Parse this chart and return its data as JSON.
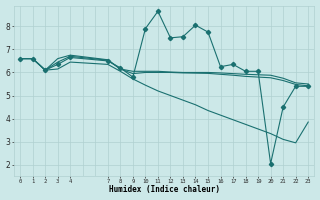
{
  "xlabel": "Humidex (Indice chaleur)",
  "bg_color": "#cce8e8",
  "grid_major_color": "#b0d0d0",
  "grid_minor_color": "#c8e4e4",
  "line_color": "#1a7070",
  "xlim": [
    -0.5,
    23.5
  ],
  "ylim": [
    1.5,
    8.9
  ],
  "yticks": [
    2,
    3,
    4,
    5,
    6,
    7,
    8
  ],
  "xticks": [
    0,
    1,
    2,
    3,
    4,
    7,
    8,
    9,
    10,
    11,
    12,
    13,
    14,
    15,
    16,
    17,
    18,
    19,
    20,
    21,
    22,
    23
  ],
  "xtick_labels": [
    "0",
    "1",
    "2",
    "3",
    "4",
    "7",
    "8",
    "9",
    "10",
    "11",
    "12",
    "13",
    "14",
    "15",
    "16",
    "17",
    "18",
    "19",
    "20",
    "21",
    "22",
    "23"
  ],
  "line1_x": [
    0,
    1,
    2,
    3,
    4,
    7,
    8,
    9,
    10,
    11,
    12,
    13,
    14,
    15,
    16,
    17,
    18,
    19,
    20,
    21,
    22,
    23
  ],
  "line1_y": [
    6.6,
    6.6,
    6.1,
    6.35,
    6.65,
    6.5,
    6.2,
    5.8,
    7.9,
    8.65,
    7.5,
    7.55,
    8.05,
    7.75,
    6.25,
    6.35,
    6.05,
    6.05,
    2.05,
    4.5,
    5.4,
    5.4
  ],
  "line2_x": [
    0,
    1,
    2,
    3,
    4,
    7,
    8,
    9,
    10,
    11,
    12,
    13,
    14,
    15,
    16,
    17,
    18,
    19,
    20,
    21,
    22,
    23
  ],
  "line2_y": [
    6.6,
    6.6,
    6.1,
    6.6,
    6.75,
    6.55,
    6.15,
    6.05,
    6.05,
    6.05,
    6.02,
    6.0,
    6.0,
    6.0,
    5.98,
    5.95,
    5.92,
    5.9,
    5.88,
    5.75,
    5.55,
    5.5
  ],
  "line3_x": [
    0,
    1,
    2,
    3,
    4,
    7,
    8,
    9,
    10,
    11,
    12,
    13,
    14,
    15,
    16,
    17,
    18,
    19,
    20,
    21,
    22,
    23
  ],
  "line3_y": [
    6.6,
    6.6,
    6.1,
    6.45,
    6.7,
    6.53,
    6.15,
    5.95,
    6.0,
    6.0,
    6.0,
    5.98,
    5.97,
    5.96,
    5.92,
    5.88,
    5.83,
    5.8,
    5.77,
    5.65,
    5.48,
    5.42
  ],
  "line4_x": [
    0,
    1,
    2,
    3,
    4,
    7,
    8,
    9,
    10,
    11,
    12,
    13,
    14,
    15,
    16,
    17,
    18,
    19,
    20,
    21,
    22,
    23
  ],
  "line4_y": [
    6.6,
    6.6,
    6.1,
    6.15,
    6.45,
    6.35,
    6.05,
    5.72,
    5.45,
    5.2,
    5.0,
    4.8,
    4.6,
    4.35,
    4.15,
    3.95,
    3.75,
    3.55,
    3.35,
    3.1,
    2.95,
    3.85
  ]
}
